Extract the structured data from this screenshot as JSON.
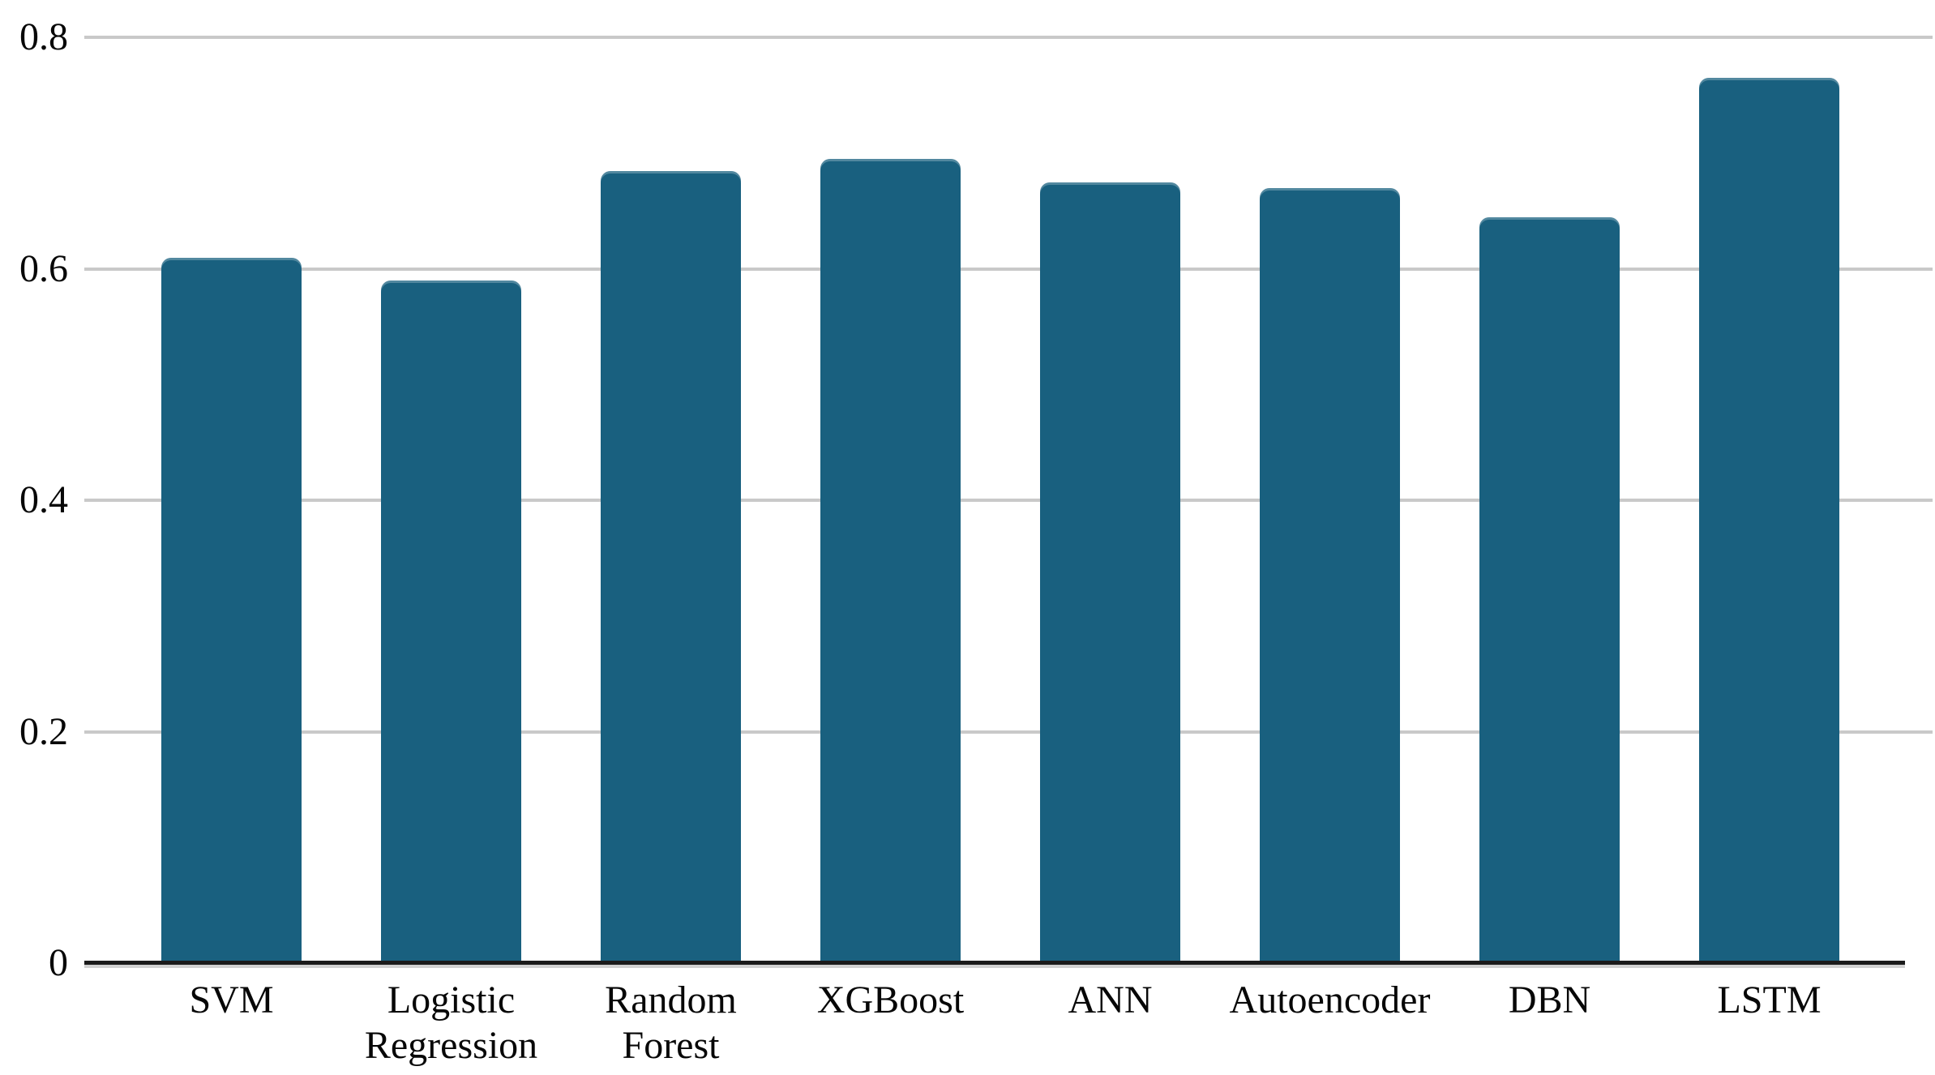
{
  "chart_data": {
    "type": "bar",
    "title": "",
    "xlabel": "",
    "ylabel": "",
    "categories": [
      "SVM",
      "Logistic Regression",
      "Random Forest",
      "XGBoost",
      "ANN",
      "Autoencoder",
      "DBN",
      "LSTM"
    ],
    "values": [
      0.61,
      0.59,
      0.685,
      0.695,
      0.675,
      0.67,
      0.645,
      0.765
    ],
    "ylim": [
      0,
      0.83
    ],
    "yticks": [
      0,
      0.2,
      0.4,
      0.6,
      0.8
    ],
    "ytick_labels": [
      "0",
      "0.2",
      "0.4",
      "0.6",
      "0.8"
    ],
    "grid": true,
    "legend": false,
    "colors": {
      "bar": "#19607f",
      "gridline": "#c9c9c9",
      "axis": "#1b1b1b",
      "label": "#070707",
      "background": "#ffffff"
    }
  }
}
